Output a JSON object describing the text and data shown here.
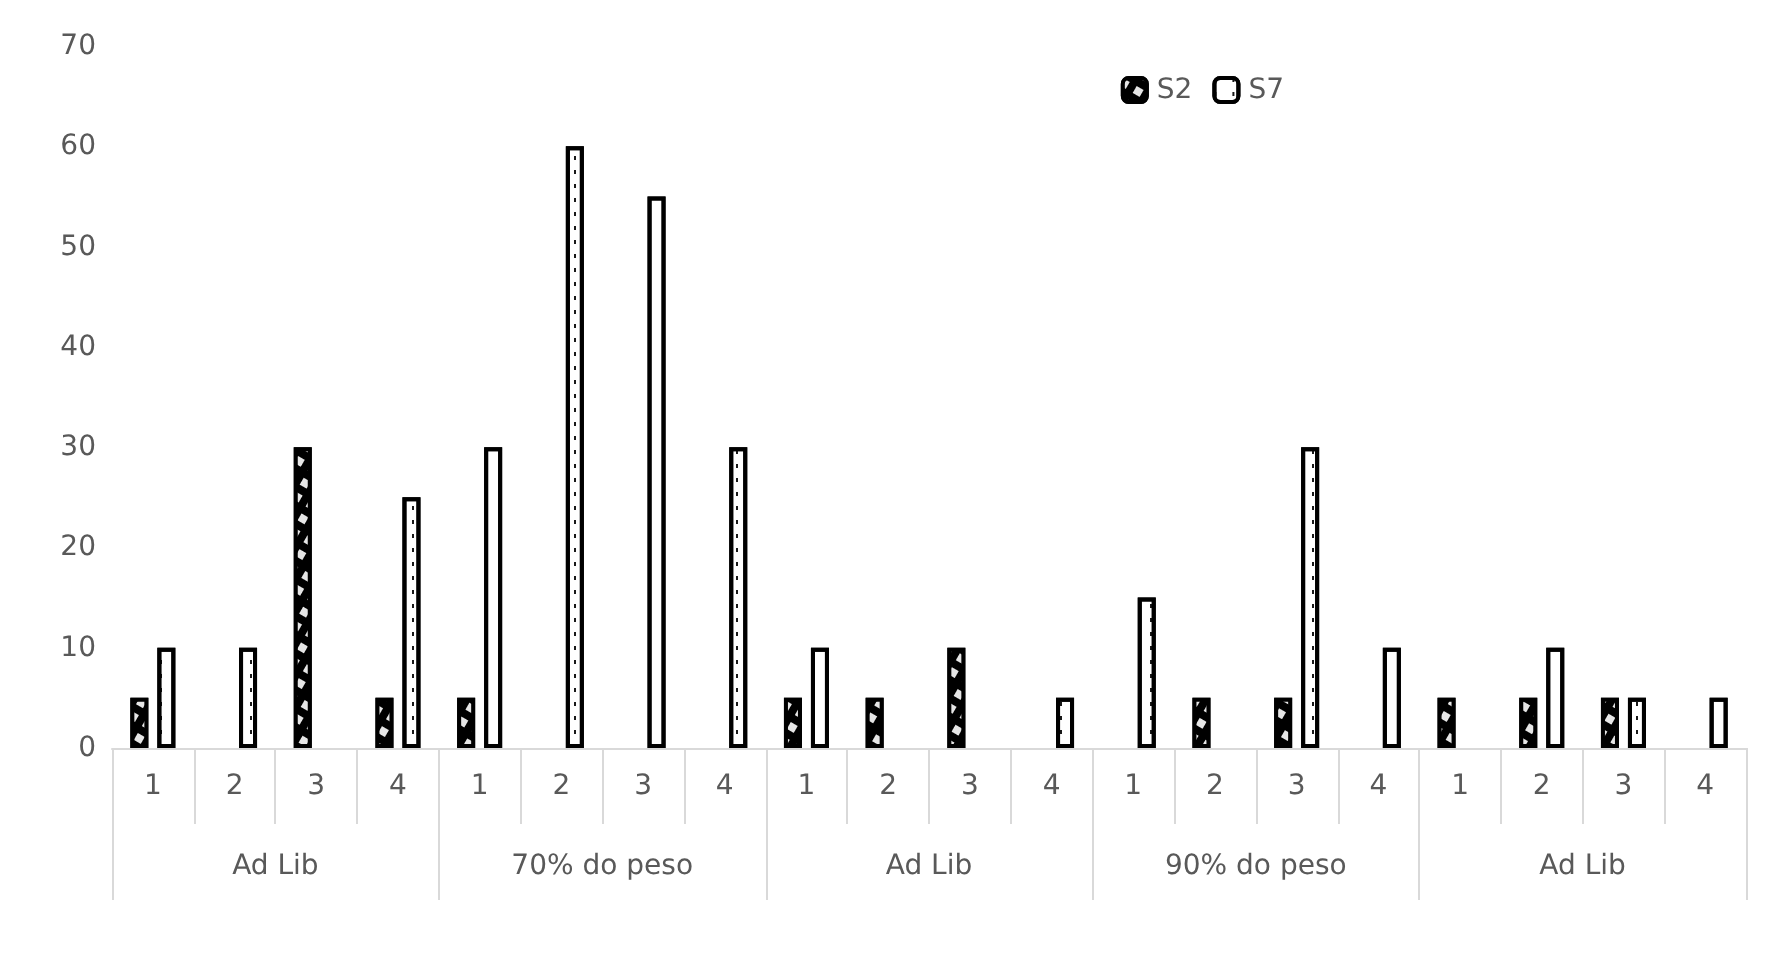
{
  "chart_data": {
    "type": "bar",
    "categories": [
      "1",
      "2",
      "3",
      "4",
      "1",
      "2",
      "3",
      "4",
      "1",
      "2",
      "3",
      "4",
      "1",
      "2",
      "3",
      "4",
      "1",
      "2",
      "3",
      "4"
    ],
    "annotations": [
      "Ad Lib",
      "70% do peso",
      "Ad Lib",
      "90% do peso",
      "Ad Lib"
    ],
    "series": [
      {
        "name": "S2",
        "color": "#000000",
        "values": [
          5,
          0,
          30,
          5,
          5,
          0,
          0,
          0,
          5,
          5,
          10,
          0,
          0,
          5,
          5,
          0,
          5,
          5,
          5,
          0
        ]
      },
      {
        "name": "S7",
        "color": "#ffffff",
        "values": [
          10,
          10,
          0,
          25,
          30,
          60,
          55,
          30,
          10,
          0,
          0,
          5,
          15,
          0,
          30,
          10,
          0,
          10,
          5,
          5
        ]
      }
    ],
    "ylim": [
      0,
      70
    ],
    "yticks": [
      0,
      10,
      20,
      30,
      40,
      50,
      60,
      70
    ],
    "grid": false,
    "legend": "top right"
  }
}
